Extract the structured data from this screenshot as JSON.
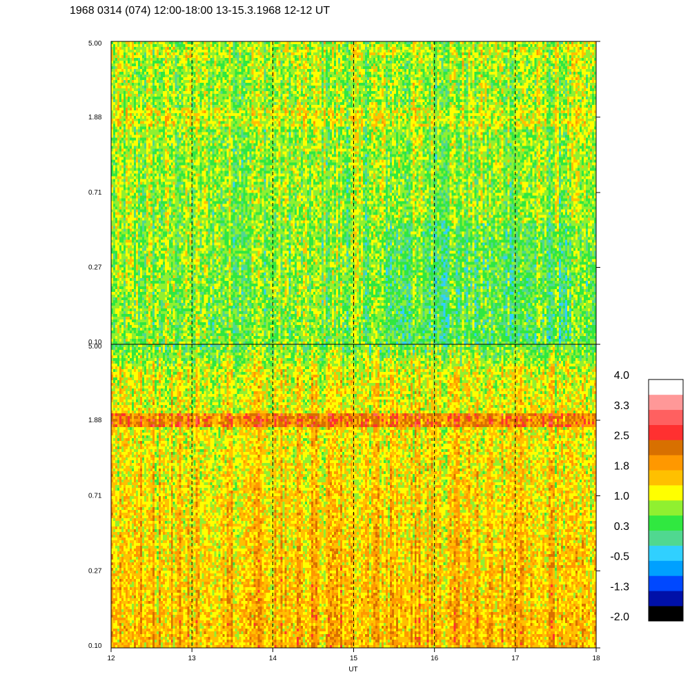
{
  "title": "1968 0314 (074) 12:00-18:00 13-15.3.1968  12-12 UT",
  "chart_data": {
    "type": "heatmap",
    "title": "1968 0314 (074) 12:00-18:00 13-15.3.1968  12-12 UT",
    "xlabel": "UT",
    "ylabel": "",
    "x_ticks": [
      "12",
      "13",
      "14",
      "15",
      "16",
      "17",
      "18"
    ],
    "x_range": [
      12,
      18
    ],
    "y_scale": "log",
    "y_range": [
      0.1,
      5.0
    ],
    "y_ticks": [
      "5.00",
      "1.88",
      "0.71",
      "0.27",
      "0.10"
    ],
    "y_tick_values": [
      5.0,
      1.88,
      0.71,
      0.27,
      0.1
    ],
    "vertical_dashed_lines_at": [
      13,
      14,
      15,
      16,
      17
    ],
    "panels": [
      {
        "name": "",
        "dominant_level_range": [
          0.3,
          1.0
        ],
        "band_at_1_88_level": 1.0,
        "band_near_5_00_level": 1.0
      },
      {
        "name": "",
        "dominant_level_range": [
          1.0,
          1.8
        ],
        "band_at_1_88_level": 2.2,
        "top_level": 0.6
      }
    ],
    "colorbar": {
      "labels": [
        "4.0",
        "3.3",
        "2.5",
        "1.8",
        "1.0",
        "0.3",
        "-0.5",
        "-1.3",
        "-2.0"
      ],
      "colors": [
        "#000000",
        "#0010a8",
        "#0048ff",
        "#00a0ff",
        "#30d0ff",
        "#50d890",
        "#30e840",
        "#90f030",
        "#ffff00",
        "#ffc000",
        "#ff9800",
        "#d87000",
        "#ff3030",
        "#ff6060",
        "#ff9898",
        "#ffffff"
      ]
    }
  }
}
